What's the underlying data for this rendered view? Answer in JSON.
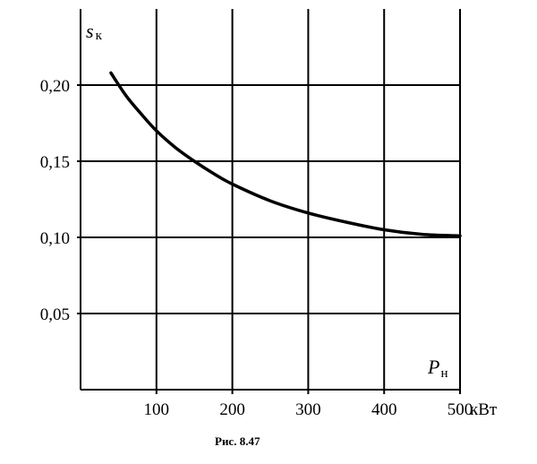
{
  "chart_data": {
    "type": "line",
    "title": "",
    "ylabel": "s",
    "ylabel_sub": "к",
    "xlabel": "P",
    "xlabel_sub": "н",
    "x_unit": "кВт",
    "xlim": [
      0,
      500
    ],
    "ylim": [
      0,
      0.25
    ],
    "grid": true,
    "x_ticks": [
      100,
      200,
      300,
      400,
      500
    ],
    "x_tick_labels": [
      "100",
      "200",
      "300",
      "400",
      "500"
    ],
    "y_ticks": [
      0.05,
      0.1,
      0.15,
      0.2
    ],
    "y_tick_labels": [
      "0,05",
      "0,10",
      "0,15",
      "0,20"
    ],
    "series": [
      {
        "x": [
          40,
          60,
          80,
          100,
          125,
          150,
          175,
          200,
          250,
          300,
          350,
          400,
          450,
          500
        ],
        "y": [
          0.208,
          0.193,
          0.181,
          0.17,
          0.159,
          0.15,
          0.142,
          0.135,
          0.124,
          0.116,
          0.11,
          0.105,
          0.102,
          0.101
        ]
      }
    ]
  },
  "caption": "Рис. 8.47"
}
